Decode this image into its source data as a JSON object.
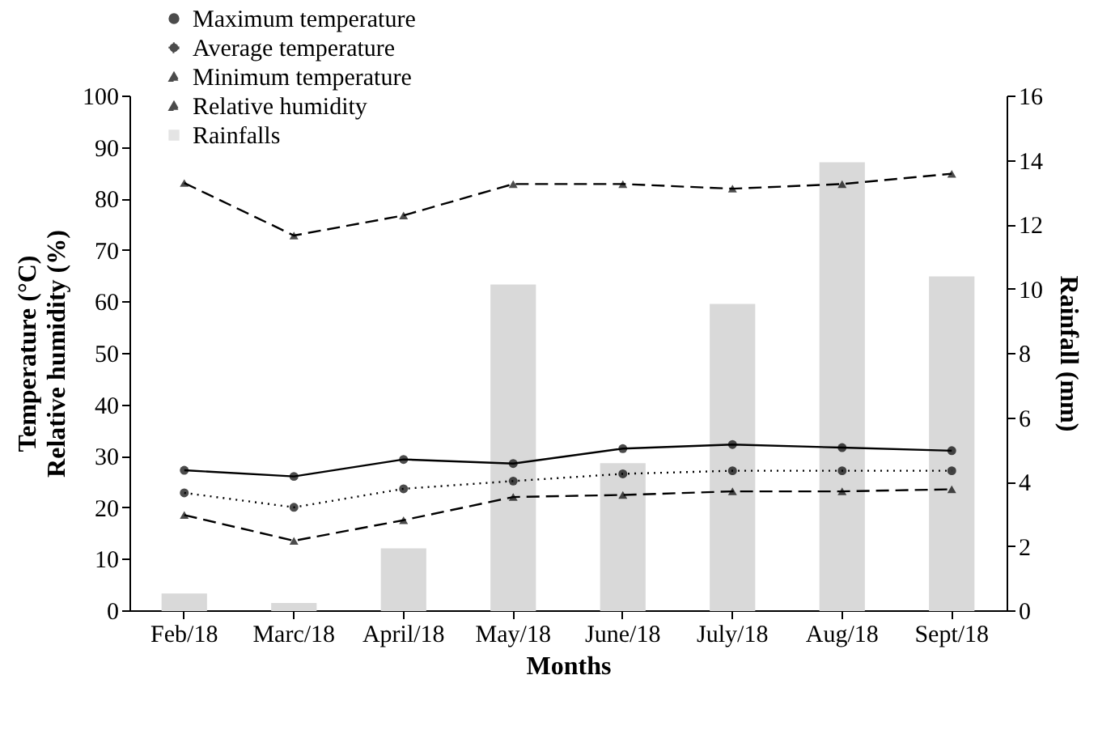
{
  "chart_data": {
    "type": "line",
    "xlabel": "Months",
    "ylabel": "Temperature (°C)\nRelative humidity (%)",
    "y2label": "Rainfall (mm)",
    "categories": [
      "Feb/18",
      "Marc/18",
      "April/18",
      "May/18",
      "June/18",
      "July/18",
      "Aug/18",
      "Sept/18"
    ],
    "series": [
      {
        "name": "Maximum temperature",
        "color": "#000000",
        "marker": "circle",
        "line_style": "solid",
        "values": [
          27.2,
          26,
          29.3,
          28.5,
          31.4,
          32.2,
          31.6,
          31
        ]
      },
      {
        "name": "Average temperature",
        "color": "#000000",
        "marker": "circle",
        "line_style": "dotted",
        "values": [
          22.8,
          20,
          23.6,
          25.1,
          26.5,
          27.1,
          27.1,
          27.1
        ]
      },
      {
        "name": "Minimum temperature",
        "color": "#000000",
        "marker": "triangle",
        "line_style": "dashed",
        "values": [
          18.5,
          13.5,
          17.5,
          22,
          22.4,
          23.1,
          23.1,
          23.5
        ]
      },
      {
        "name": "Relative humidity",
        "color": "#000000",
        "marker": "triangle",
        "line_style": "dashed",
        "values": [
          83,
          72.8,
          76.7,
          82.8,
          82.8,
          81.9,
          82.8,
          84.8
        ]
      },
      {
        "name": "Rainfalls",
        "type": "bar",
        "axis": "y2",
        "color": "#d9d9d9",
        "values": [
          0.5,
          0.2,
          1.9,
          10.1,
          4.55,
          9.5,
          13.9,
          10.35
        ]
      }
    ],
    "ylim": [
      0,
      100
    ],
    "yticks": [
      0,
      10,
      20,
      30,
      40,
      50,
      60,
      70,
      80,
      90,
      100
    ],
    "y2lim": [
      0,
      16
    ],
    "y2ticks": [
      0,
      2,
      4,
      6,
      8,
      10,
      12,
      14,
      16
    ],
    "grid": false,
    "legend": "top left"
  }
}
